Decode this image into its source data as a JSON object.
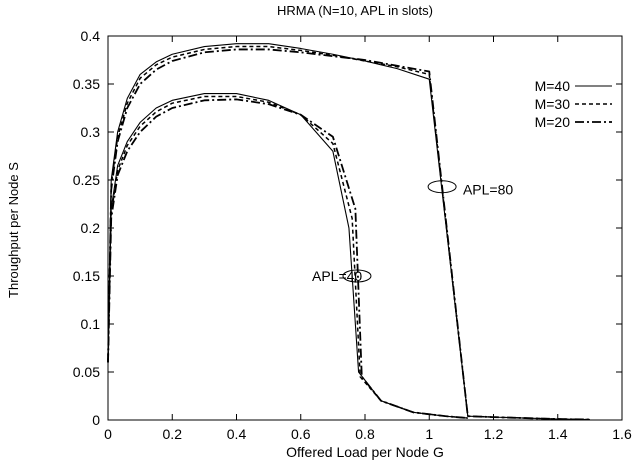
{
  "chart_data": {
    "type": "line",
    "title": "HRMA (N=10, APL in slots)",
    "xlabel": "Offered Load per Node G",
    "ylabel": "Throughput per Node S",
    "xlim": [
      0,
      1.6
    ],
    "ylim": [
      0,
      0.4
    ],
    "x_ticks": [
      0,
      0.2,
      0.4,
      0.6,
      0.8,
      1,
      1.2,
      1.4,
      1.6
    ],
    "y_ticks": [
      0,
      0.05,
      0.1,
      0.15,
      0.2,
      0.25,
      0.3,
      0.35,
      0.4
    ],
    "x_tick_labels": [
      "0",
      "0.2",
      "0.4",
      "0.6",
      "0.8",
      "1",
      "1.2",
      "1.4",
      "1.6"
    ],
    "y_tick_labels": [
      "0",
      "0.05",
      "0.1",
      "0.15",
      "0.2",
      "0.25",
      "0.3",
      "0.35",
      "0.4"
    ],
    "grid": false,
    "legend_position": "top-right",
    "legend": [
      {
        "label": "M=40",
        "dash": "solid"
      },
      {
        "label": "M=30",
        "dash": "dashed"
      },
      {
        "label": "M=20",
        "dash": "dash-dot"
      }
    ],
    "series": [
      {
        "name": "M=40",
        "group": "APL=80",
        "style": "solid",
        "x": [
          0.0,
          0.01,
          0.03,
          0.06,
          0.1,
          0.15,
          0.2,
          0.3,
          0.4,
          0.5,
          0.6,
          0.7,
          0.8,
          0.9,
          1.0,
          1.12,
          1.2,
          1.3,
          1.4,
          1.5
        ],
        "y": [
          0.06,
          0.25,
          0.3,
          0.335,
          0.36,
          0.373,
          0.381,
          0.389,
          0.392,
          0.392,
          0.387,
          0.381,
          0.374,
          0.366,
          0.355,
          0.004,
          0.003,
          0.002,
          0.001,
          0.0005
        ]
      },
      {
        "name": "M=30",
        "group": "APL=80",
        "style": "dashed",
        "x": [
          0.0,
          0.01,
          0.03,
          0.06,
          0.1,
          0.15,
          0.2,
          0.3,
          0.4,
          0.5,
          0.6,
          0.7,
          0.8,
          0.9,
          1.0,
          1.12,
          1.2,
          1.3,
          1.4,
          1.5
        ],
        "y": [
          0.06,
          0.245,
          0.295,
          0.33,
          0.356,
          0.37,
          0.378,
          0.386,
          0.389,
          0.389,
          0.385,
          0.38,
          0.374,
          0.368,
          0.36,
          0.004,
          0.003,
          0.002,
          0.001,
          0.0005
        ]
      },
      {
        "name": "M=20",
        "group": "APL=80",
        "style": "dash-dot",
        "x": [
          0.0,
          0.01,
          0.03,
          0.06,
          0.1,
          0.15,
          0.2,
          0.3,
          0.4,
          0.5,
          0.6,
          0.7,
          0.8,
          0.9,
          1.0,
          1.12,
          1.2,
          1.3,
          1.4,
          1.5
        ],
        "y": [
          0.06,
          0.24,
          0.29,
          0.325,
          0.35,
          0.365,
          0.374,
          0.383,
          0.386,
          0.386,
          0.383,
          0.379,
          0.375,
          0.369,
          0.363,
          0.004,
          0.003,
          0.002,
          0.001,
          0.0005
        ]
      },
      {
        "name": "M=40",
        "group": "APL=40",
        "style": "solid",
        "x": [
          0.0,
          0.01,
          0.03,
          0.06,
          0.1,
          0.15,
          0.2,
          0.3,
          0.4,
          0.5,
          0.6,
          0.7,
          0.75,
          0.78,
          0.85,
          0.95,
          1.05,
          1.12
        ],
        "y": [
          0.06,
          0.22,
          0.265,
          0.29,
          0.31,
          0.325,
          0.333,
          0.34,
          0.34,
          0.333,
          0.318,
          0.28,
          0.2,
          0.05,
          0.02,
          0.008,
          0.004,
          0.002
        ]
      },
      {
        "name": "M=30",
        "group": "APL=40",
        "style": "dashed",
        "x": [
          0.0,
          0.01,
          0.03,
          0.06,
          0.1,
          0.15,
          0.2,
          0.3,
          0.4,
          0.5,
          0.6,
          0.7,
          0.76,
          0.785,
          0.85,
          0.95,
          1.05,
          1.12
        ],
        "y": [
          0.06,
          0.215,
          0.26,
          0.286,
          0.306,
          0.321,
          0.33,
          0.337,
          0.337,
          0.331,
          0.318,
          0.288,
          0.21,
          0.045,
          0.02,
          0.008,
          0.004,
          0.002
        ]
      },
      {
        "name": "M=20",
        "group": "APL=40",
        "style": "dash-dot",
        "x": [
          0.0,
          0.01,
          0.03,
          0.06,
          0.1,
          0.15,
          0.2,
          0.3,
          0.4,
          0.5,
          0.6,
          0.7,
          0.77,
          0.79,
          0.85,
          0.95,
          1.05,
          1.12
        ],
        "y": [
          0.06,
          0.21,
          0.255,
          0.28,
          0.3,
          0.316,
          0.325,
          0.333,
          0.334,
          0.329,
          0.318,
          0.295,
          0.22,
          0.045,
          0.02,
          0.008,
          0.004,
          0.002
        ]
      }
    ],
    "annotations": [
      {
        "text": "APL=80",
        "x": 1.105,
        "y": 0.24,
        "ellipse_x": 1.04,
        "ellipse_y": 0.243
      },
      {
        "text": "APL=40",
        "x": 0.635,
        "y": 0.15,
        "ellipse_x": 0.775,
        "ellipse_y": 0.15
      }
    ]
  }
}
